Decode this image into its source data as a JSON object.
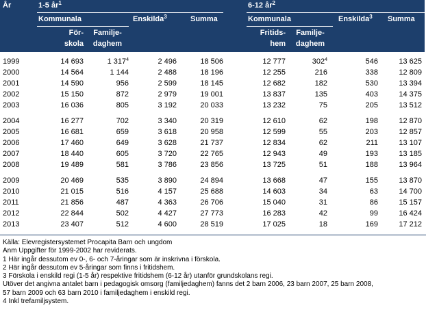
{
  "header": {
    "year_label": "År",
    "group_a": {
      "label": "1-5 år",
      "note": "1"
    },
    "group_b": {
      "label": "6-12 år",
      "note": "2"
    },
    "kommunala_a": "Kommunala",
    "kommunala_b": "Kommunala",
    "forskola_1": "För-",
    "forskola_2": "skola",
    "familje_a_1": "Familje-",
    "familje_a_2": "daghem",
    "enskilda_a": {
      "label": "Enskilda",
      "note": "3"
    },
    "summa_a": "Summa",
    "fritids_1": "Fritids-",
    "fritids_2": "hem",
    "familje_b_1": "Familje-",
    "familje_b_2": "daghem",
    "enskilda_b": {
      "label": "Enskilda",
      "note": "3"
    },
    "summa_b": "Summa"
  },
  "groups": [
    [
      {
        "year": "1999",
        "forskola": "14 693",
        "familj_a": "1 317",
        "familj_a_note": "4",
        "enskilda_a": "2 496",
        "summa_a": "18 506",
        "fritids": "12 777",
        "familj_b": "302",
        "familj_b_note": "4",
        "enskilda_b": "546",
        "summa_b": "13 625"
      },
      {
        "year": "2000",
        "forskola": "14 564",
        "familj_a": "1 144",
        "enskilda_a": "2 488",
        "summa_a": "18 196",
        "fritids": "12 255",
        "familj_b": "216",
        "enskilda_b": "338",
        "summa_b": "12 809"
      },
      {
        "year": "2001",
        "forskola": "14 590",
        "familj_a": "956",
        "enskilda_a": "2 599",
        "summa_a": "18 145",
        "fritids": "12 682",
        "familj_b": "182",
        "enskilda_b": "530",
        "summa_b": "13 394"
      },
      {
        "year": "2002",
        "forskola": "15 150",
        "familj_a": "872",
        "enskilda_a": "2 979",
        "summa_a": "19 001",
        "fritids": "13 837",
        "familj_b": "135",
        "enskilda_b": "403",
        "summa_b": "14 375"
      },
      {
        "year": "2003",
        "forskola": "16 036",
        "familj_a": "805",
        "enskilda_a": "3 192",
        "summa_a": "20 033",
        "fritids": "13 232",
        "familj_b": "75",
        "enskilda_b": "205",
        "summa_b": "13 512"
      }
    ],
    [
      {
        "year": "2004",
        "forskola": "16 277",
        "familj_a": "702",
        "enskilda_a": "3 340",
        "summa_a": "20 319",
        "fritids": "12 610",
        "familj_b": "62",
        "enskilda_b": "198",
        "summa_b": "12 870"
      },
      {
        "year": "2005",
        "forskola": "16 681",
        "familj_a": "659",
        "enskilda_a": "3 618",
        "summa_a": "20 958",
        "fritids": "12 599",
        "familj_b": "55",
        "enskilda_b": "203",
        "summa_b": "12 857"
      },
      {
        "year": "2006",
        "forskola": "17 460",
        "familj_a": "649",
        "enskilda_a": "3 628",
        "summa_a": "21 737",
        "fritids": "12 834",
        "familj_b": "62",
        "enskilda_b": "211",
        "summa_b": "13 107"
      },
      {
        "year": "2007",
        "forskola": "18 440",
        "familj_a": "605",
        "enskilda_a": "3 720",
        "summa_a": "22 765",
        "fritids": "12 943",
        "familj_b": "49",
        "enskilda_b": "193",
        "summa_b": "13 185"
      },
      {
        "year": "2008",
        "forskola": "19 489",
        "familj_a": "581",
        "enskilda_a": "3 786",
        "summa_a": "23 856",
        "fritids": "13 725",
        "familj_b": "51",
        "enskilda_b": "188",
        "summa_b": "13 964"
      }
    ],
    [
      {
        "year": "2009",
        "forskola": "20 469",
        "familj_a": "535",
        "enskilda_a": "3 890",
        "summa_a": "24 894",
        "fritids": "13 668",
        "familj_b": "47",
        "enskilda_b": "155",
        "summa_b": "13 870"
      },
      {
        "year": "2010",
        "forskola": "21 015",
        "familj_a": "516",
        "enskilda_a": "4 157",
        "summa_a": "25 688",
        "fritids": "14 603",
        "familj_b": "34",
        "enskilda_b": "63",
        "summa_b": "14 700"
      },
      {
        "year": "2011",
        "forskola": "21 856",
        "familj_a": "487",
        "enskilda_a": "4 363",
        "summa_a": "26 706",
        "fritids": "15 040",
        "familj_b": "31",
        "enskilda_b": "86",
        "summa_b": "15 157"
      },
      {
        "year": "2012",
        "forskola": "22 844",
        "familj_a": "502",
        "enskilda_a": "4 427",
        "summa_a": "27 773",
        "fritids": "16 283",
        "familj_b": "42",
        "enskilda_b": "99",
        "summa_b": "16 424"
      },
      {
        "year": "2013",
        "forskola": "23 407",
        "familj_a": "512",
        "enskilda_a": "4 600",
        "summa_a": "28 519",
        "fritids": "17 025",
        "familj_b": "18",
        "enskilda_b": "169",
        "summa_b": "17 212"
      }
    ]
  ],
  "footnotes": [
    "Källa:  Elevregistersystemet Procapita Barn och ungdom",
    "Anm  Uppgifter för 1999-2002 har reviderats.",
    "1  Här ingår dessutom ev 0-, 6- och 7-åringar som är inskrivna i förskola.",
    "2  Här ingår dessutom ev 5-åringar som finns i fritidshem.",
    "3  Förskola i enskild regi (1-5 år) respektive fritidshem (6-12 år) utanför grundskolans regi.",
    "Utöver det angivna antalet barn i pedagogisk omsorg (familjedaghem) fanns det 2 barn 2006, 23 barn 2007, 25 barn 2008,",
    "57 barn 2009 och 63 barn 2010 i familjedaghem i enskild regi.",
    "4  Inkl trefamiljsystem."
  ]
}
